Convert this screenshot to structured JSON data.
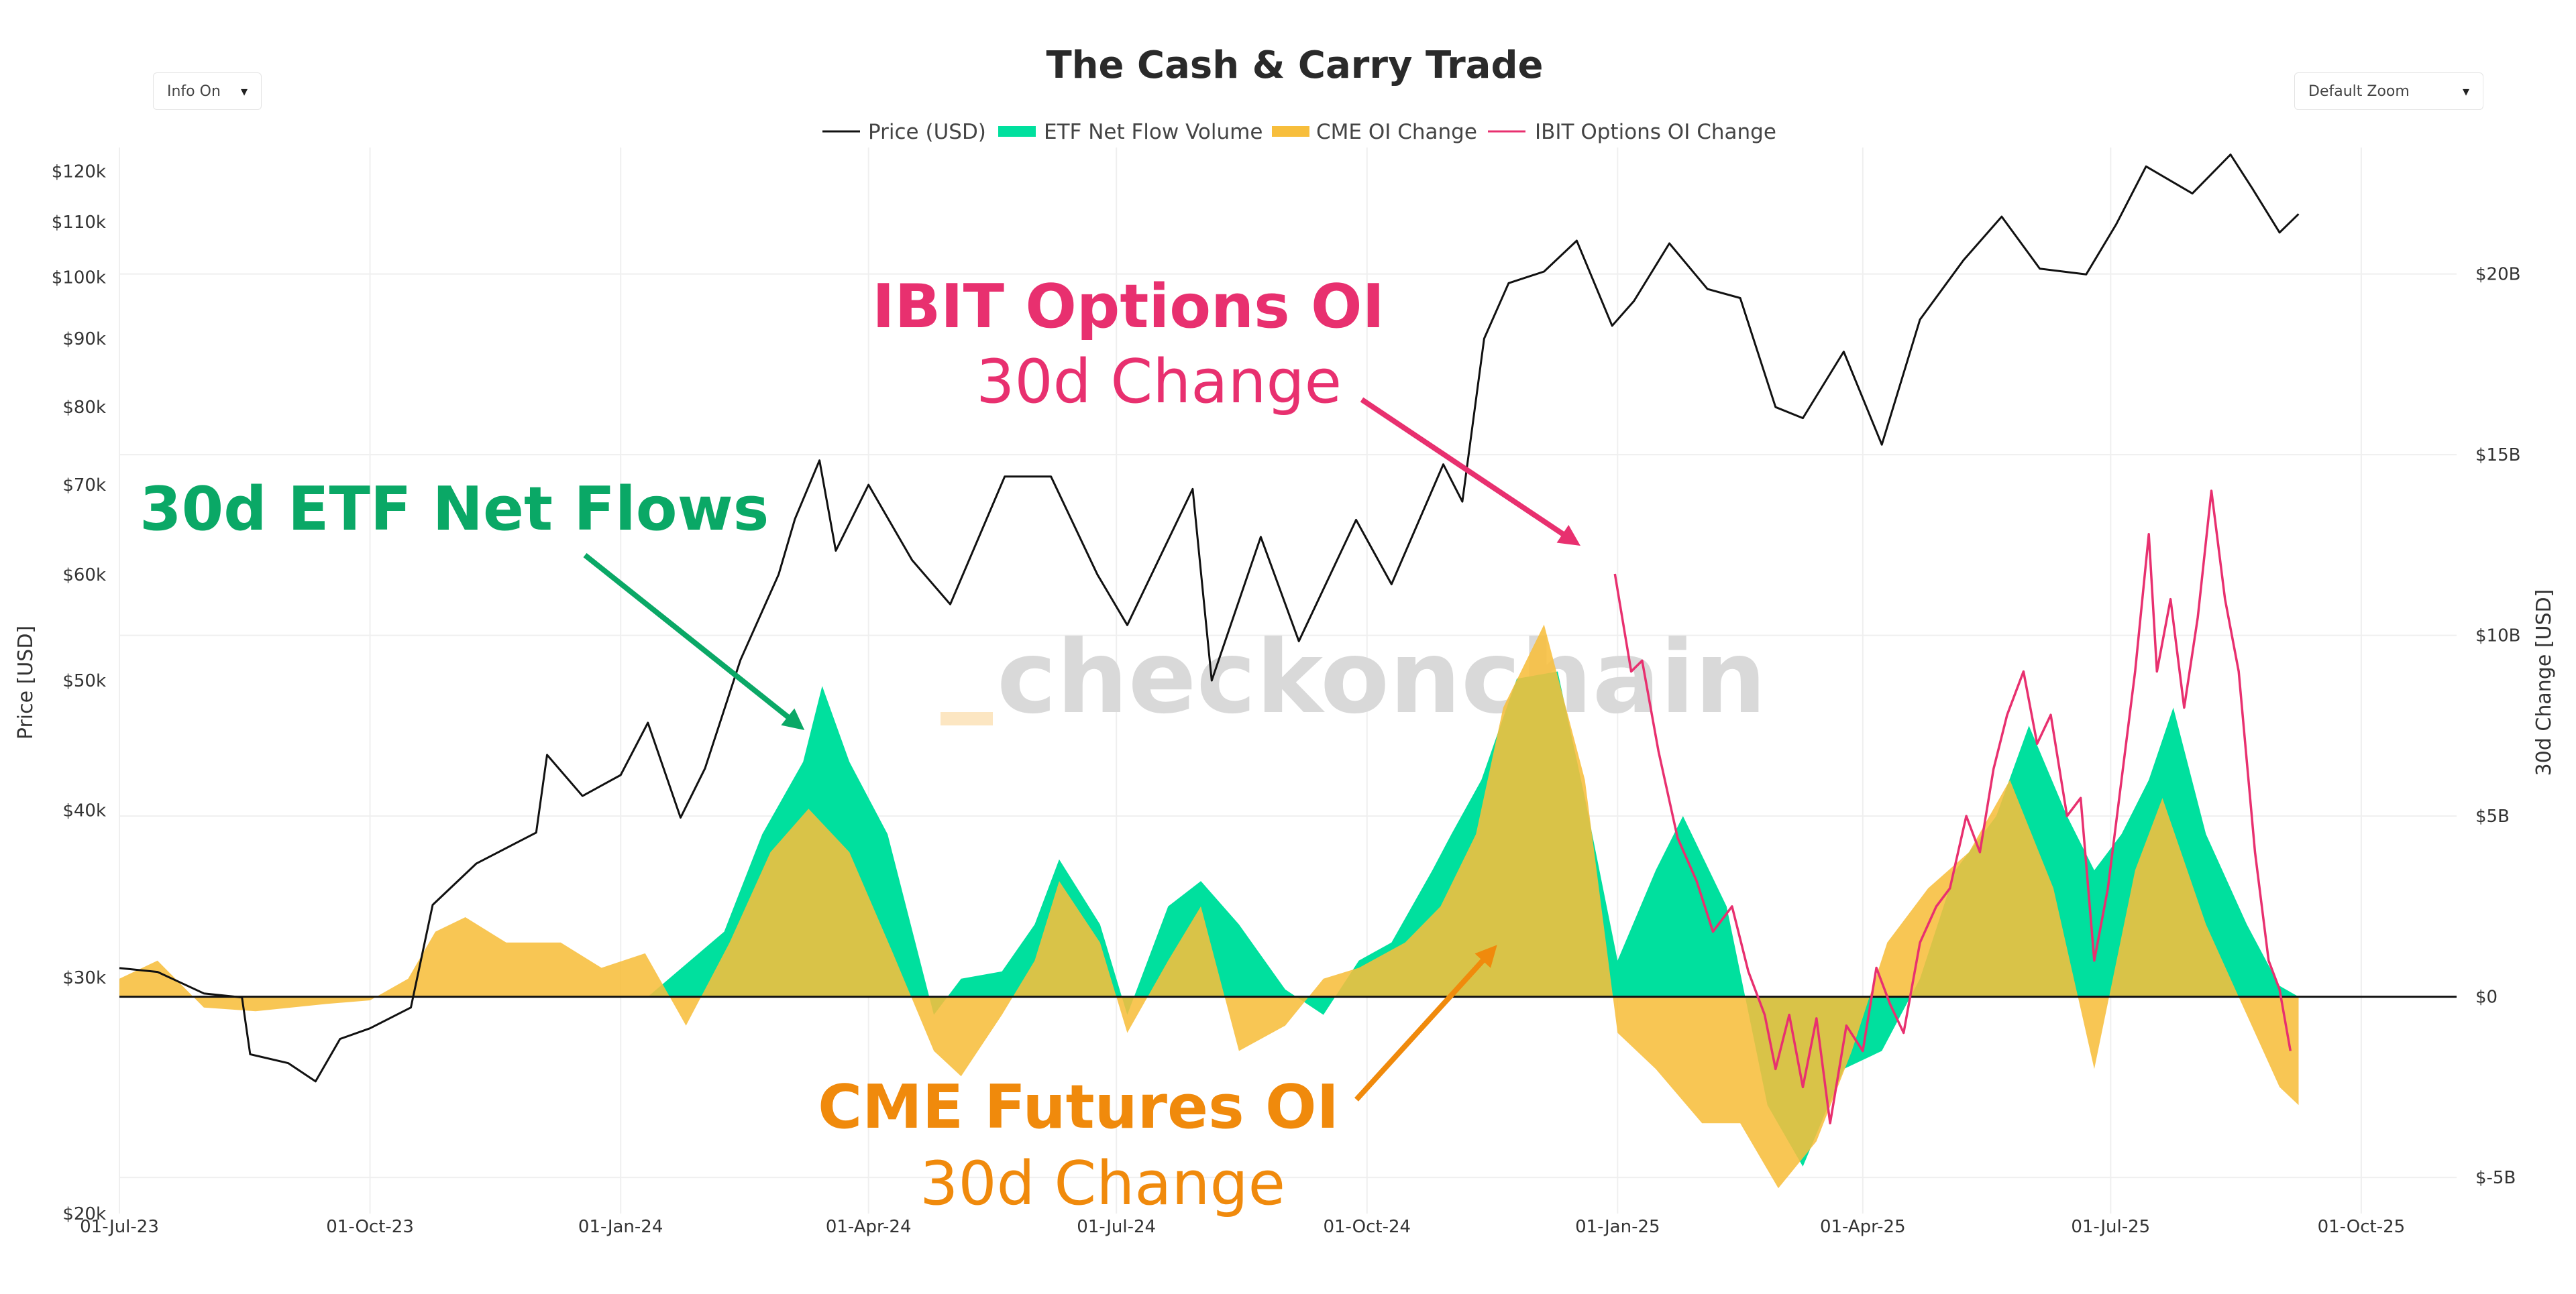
{
  "controls": {
    "info_label": "Info On",
    "zoom_label": "Default Zoom",
    "caret": "▾"
  },
  "colors": {
    "price": "#111111",
    "etf": "#00e09e",
    "cme": "#f7be3c",
    "ibit": "#e8306f",
    "etf_annotation": "#0aa866",
    "cme_annotation": "#f08a0c",
    "ibit_annotation": "#e8306f",
    "grid": "#efefef",
    "watermark": "#d9d9d9",
    "watermark_bar": "#fce6c2"
  },
  "chart_data": {
    "type": "line",
    "title": "The Cash & Carry Trade",
    "xlabel": "",
    "ylabel_left": "Price [USD]",
    "ylabel_right": "30d Change [USD]",
    "y_left_scale": "log",
    "y_left_range": [
      20000,
      125000
    ],
    "y_right_range": [
      -6000000000,
      23500000000
    ],
    "x_range": [
      "2023-07-01",
      "2025-11-05"
    ],
    "x_ticks": [
      {
        "date": "2023-07-01",
        "label": "01-Jul-23"
      },
      {
        "date": "2023-10-01",
        "label": "01-Oct-23"
      },
      {
        "date": "2024-01-01",
        "label": "01-Jan-24"
      },
      {
        "date": "2024-04-01",
        "label": "01-Apr-24"
      },
      {
        "date": "2024-07-01",
        "label": "01-Jul-24"
      },
      {
        "date": "2024-10-01",
        "label": "01-Oct-24"
      },
      {
        "date": "2025-01-01",
        "label": "01-Jan-25"
      },
      {
        "date": "2025-04-01",
        "label": "01-Apr-25"
      },
      {
        "date": "2025-07-01",
        "label": "01-Jul-25"
      },
      {
        "date": "2025-10-01",
        "label": "01-Oct-25"
      }
    ],
    "y_left_ticks": [
      {
        "value": 20000,
        "label": "$20k"
      },
      {
        "value": 30000,
        "label": "$30k"
      },
      {
        "value": 40000,
        "label": "$40k"
      },
      {
        "value": 50000,
        "label": "$50k"
      },
      {
        "value": 60000,
        "label": "$60k"
      },
      {
        "value": 70000,
        "label": "$70k"
      },
      {
        "value": 80000,
        "label": "$80k"
      },
      {
        "value": 90000,
        "label": "$90k"
      },
      {
        "value": 100000,
        "label": "$100k"
      },
      {
        "value": 110000,
        "label": "$110k"
      },
      {
        "value": 120000,
        "label": "$120k"
      }
    ],
    "y_right_ticks": [
      {
        "value": -5000000000,
        "label": "$-5B"
      },
      {
        "value": 0,
        "label": "$0"
      },
      {
        "value": 5000000000,
        "label": "$5B"
      },
      {
        "value": 10000000000,
        "label": "$10B"
      },
      {
        "value": 15000000000,
        "label": "$15B"
      },
      {
        "value": 20000000000,
        "label": "$20B"
      }
    ],
    "legend": [
      {
        "name": "Price (USD)",
        "kind": "line",
        "series": "price"
      },
      {
        "name": "ETF Net Flow Volume",
        "kind": "area",
        "series": "etf"
      },
      {
        "name": "CME OI Change",
        "kind": "area",
        "series": "cme"
      },
      {
        "name": "IBIT Options OI Change",
        "kind": "line",
        "series": "ibit"
      }
    ],
    "series": [
      {
        "name": "Price (USD)",
        "key": "price",
        "axis": "left",
        "points": [
          [
            "2023-07-01",
            30500
          ],
          [
            "2023-07-15",
            30300
          ],
          [
            "2023-08-01",
            29200
          ],
          [
            "2023-08-15",
            29000
          ],
          [
            "2023-08-18",
            26300
          ],
          [
            "2023-09-01",
            25900
          ],
          [
            "2023-09-11",
            25100
          ],
          [
            "2023-09-20",
            27000
          ],
          [
            "2023-10-01",
            27500
          ],
          [
            "2023-10-16",
            28500
          ],
          [
            "2023-10-24",
            34000
          ],
          [
            "2023-11-09",
            36500
          ],
          [
            "2023-12-01",
            38500
          ],
          [
            "2023-12-05",
            44000
          ],
          [
            "2023-12-18",
            41000
          ],
          [
            "2024-01-01",
            42500
          ],
          [
            "2024-01-11",
            46500
          ],
          [
            "2024-01-23",
            39500
          ],
          [
            "2024-02-01",
            43000
          ],
          [
            "2024-02-14",
            51800
          ],
          [
            "2024-02-28",
            60000
          ],
          [
            "2024-03-05",
            66000
          ],
          [
            "2024-03-14",
            73000
          ],
          [
            "2024-03-20",
            62500
          ],
          [
            "2024-04-01",
            70000
          ],
          [
            "2024-04-17",
            61500
          ],
          [
            "2024-05-01",
            57000
          ],
          [
            "2024-05-21",
            71000
          ],
          [
            "2024-06-07",
            71000
          ],
          [
            "2024-06-24",
            60000
          ],
          [
            "2024-07-05",
            55000
          ],
          [
            "2024-07-29",
            69500
          ],
          [
            "2024-08-05",
            50000
          ],
          [
            "2024-08-23",
            64000
          ],
          [
            "2024-09-06",
            53500
          ],
          [
            "2024-09-27",
            65900
          ],
          [
            "2024-10-10",
            59000
          ],
          [
            "2024-10-29",
            72500
          ],
          [
            "2024-11-05",
            68000
          ],
          [
            "2024-11-13",
            90000
          ],
          [
            "2024-11-22",
            99000
          ],
          [
            "2024-12-05",
            101000
          ],
          [
            "2024-12-17",
            106500
          ],
          [
            "2024-12-30",
            92000
          ],
          [
            "2025-01-07",
            96000
          ],
          [
            "2025-01-20",
            106000
          ],
          [
            "2025-02-03",
            98000
          ],
          [
            "2025-02-15",
            96500
          ],
          [
            "2025-02-28",
            80000
          ],
          [
            "2025-03-10",
            78500
          ],
          [
            "2025-03-25",
            88000
          ],
          [
            "2025-04-08",
            75000
          ],
          [
            "2025-04-22",
            93000
          ],
          [
            "2025-05-08",
            103000
          ],
          [
            "2025-05-22",
            111000
          ],
          [
            "2025-06-05",
            101500
          ],
          [
            "2025-06-22",
            100500
          ],
          [
            "2025-07-03",
            109500
          ],
          [
            "2025-07-14",
            121000
          ],
          [
            "2025-07-31",
            115500
          ],
          [
            "2025-08-14",
            123500
          ],
          [
            "2025-08-22",
            116500
          ],
          [
            "2025-09-01",
            108000
          ],
          [
            "2025-09-08",
            111500
          ]
        ]
      },
      {
        "name": "ETF Net Flow Volume",
        "key": "etf",
        "axis": "right",
        "points": [
          [
            "2024-01-11",
            0
          ],
          [
            "2024-01-25",
            900000000
          ],
          [
            "2024-02-08",
            1800000000
          ],
          [
            "2024-02-22",
            4500000000
          ],
          [
            "2024-03-08",
            6500000000
          ],
          [
            "2024-03-15",
            8600000000
          ],
          [
            "2024-03-25",
            6500000000
          ],
          [
            "2024-04-08",
            4500000000
          ],
          [
            "2024-04-25",
            -500000000
          ],
          [
            "2024-05-05",
            500000000
          ],
          [
            "2024-05-20",
            700000000
          ],
          [
            "2024-06-01",
            2000000000
          ],
          [
            "2024-06-10",
            3800000000
          ],
          [
            "2024-06-25",
            2000000000
          ],
          [
            "2024-07-05",
            -500000000
          ],
          [
            "2024-07-20",
            2500000000
          ],
          [
            "2024-08-01",
            3200000000
          ],
          [
            "2024-08-15",
            2000000000
          ],
          [
            "2024-09-01",
            200000000
          ],
          [
            "2024-09-15",
            -500000000
          ],
          [
            "2024-09-28",
            1000000000
          ],
          [
            "2024-10-10",
            1500000000
          ],
          [
            "2024-10-25",
            3500000000
          ],
          [
            "2024-11-01",
            4500000000
          ],
          [
            "2024-11-12",
            6000000000
          ],
          [
            "2024-11-25",
            8800000000
          ],
          [
            "2024-12-10",
            9000000000
          ],
          [
            "2024-12-20",
            5500000000
          ],
          [
            "2025-01-01",
            1000000000
          ],
          [
            "2025-01-15",
            3500000000
          ],
          [
            "2025-01-25",
            5000000000
          ],
          [
            "2025-02-10",
            2500000000
          ],
          [
            "2025-02-25",
            -3000000000
          ],
          [
            "2025-03-10",
            -4700000000
          ],
          [
            "2025-03-25",
            -2000000000
          ],
          [
            "2025-04-08",
            -1500000000
          ],
          [
            "2025-04-22",
            500000000
          ],
          [
            "2025-05-05",
            3500000000
          ],
          [
            "2025-05-20",
            5000000000
          ],
          [
            "2025-06-01",
            7500000000
          ],
          [
            "2025-06-15",
            5000000000
          ],
          [
            "2025-06-25",
            3500000000
          ],
          [
            "2025-07-05",
            4500000000
          ],
          [
            "2025-07-15",
            6000000000
          ],
          [
            "2025-07-24",
            8000000000
          ],
          [
            "2025-08-05",
            4500000000
          ],
          [
            "2025-08-20",
            2000000000
          ],
          [
            "2025-09-01",
            300000000
          ],
          [
            "2025-09-08",
            0
          ]
        ]
      },
      {
        "name": "CME OI Change",
        "key": "cme",
        "axis": "right",
        "points": [
          [
            "2023-07-01",
            500000000
          ],
          [
            "2023-07-15",
            1000000000
          ],
          [
            "2023-08-01",
            -300000000
          ],
          [
            "2023-08-20",
            -400000000
          ],
          [
            "2023-09-15",
            -200000000
          ],
          [
            "2023-10-01",
            -100000000
          ],
          [
            "2023-10-15",
            500000000
          ],
          [
            "2023-10-25",
            1800000000
          ],
          [
            "2023-11-05",
            2200000000
          ],
          [
            "2023-11-20",
            1500000000
          ],
          [
            "2023-12-10",
            1500000000
          ],
          [
            "2023-12-25",
            800000000
          ],
          [
            "2024-01-10",
            1200000000
          ],
          [
            "2024-01-25",
            -800000000
          ],
          [
            "2024-02-10",
            1500000000
          ],
          [
            "2024-02-25",
            4000000000
          ],
          [
            "2024-03-10",
            5200000000
          ],
          [
            "2024-03-25",
            4000000000
          ],
          [
            "2024-04-10",
            1200000000
          ],
          [
            "2024-04-25",
            -1500000000
          ],
          [
            "2024-05-05",
            -2200000000
          ],
          [
            "2024-05-20",
            -500000000
          ],
          [
            "2024-06-01",
            1000000000
          ],
          [
            "2024-06-10",
            3200000000
          ],
          [
            "2024-06-25",
            1500000000
          ],
          [
            "2024-07-05",
            -1000000000
          ],
          [
            "2024-07-20",
            1000000000
          ],
          [
            "2024-08-01",
            2500000000
          ],
          [
            "2024-08-15",
            -1500000000
          ],
          [
            "2024-09-01",
            -800000000
          ],
          [
            "2024-09-15",
            500000000
          ],
          [
            "2024-09-28",
            800000000
          ],
          [
            "2024-10-15",
            1500000000
          ],
          [
            "2024-10-28",
            2500000000
          ],
          [
            "2024-11-10",
            4500000000
          ],
          [
            "2024-11-20",
            8000000000
          ],
          [
            "2024-12-05",
            10300000000
          ],
          [
            "2024-12-20",
            6000000000
          ],
          [
            "2025-01-01",
            -1000000000
          ],
          [
            "2025-01-15",
            -2000000000
          ],
          [
            "2025-02-01",
            -3500000000
          ],
          [
            "2025-02-15",
            -3500000000
          ],
          [
            "2025-03-01",
            -5300000000
          ],
          [
            "2025-03-15",
            -4000000000
          ],
          [
            "2025-03-28",
            -1500000000
          ],
          [
            "2025-04-10",
            1500000000
          ],
          [
            "2025-04-25",
            3000000000
          ],
          [
            "2025-05-10",
            4000000000
          ],
          [
            "2025-05-25",
            6000000000
          ],
          [
            "2025-06-10",
            3000000000
          ],
          [
            "2025-06-25",
            -2000000000
          ],
          [
            "2025-07-10",
            3500000000
          ],
          [
            "2025-07-20",
            5500000000
          ],
          [
            "2025-08-05",
            2000000000
          ],
          [
            "2025-08-20",
            -500000000
          ],
          [
            "2025-09-01",
            -2500000000
          ],
          [
            "2025-09-08",
            -3000000000
          ]
        ]
      },
      {
        "name": "IBIT Options OI Change",
        "key": "ibit",
        "axis": "right",
        "points": [
          [
            "2024-12-31",
            11700000000
          ],
          [
            "2025-01-06",
            9000000000
          ],
          [
            "2025-01-10",
            9300000000
          ],
          [
            "2025-01-16",
            6800000000
          ],
          [
            "2025-01-23",
            4400000000
          ],
          [
            "2025-01-30",
            3200000000
          ],
          [
            "2025-02-05",
            1800000000
          ],
          [
            "2025-02-12",
            2500000000
          ],
          [
            "2025-02-18",
            700000000
          ],
          [
            "2025-02-24",
            -500000000
          ],
          [
            "2025-02-28",
            -2000000000
          ],
          [
            "2025-03-05",
            -500000000
          ],
          [
            "2025-03-10",
            -2500000000
          ],
          [
            "2025-03-15",
            -600000000
          ],
          [
            "2025-03-20",
            -3500000000
          ],
          [
            "2025-03-26",
            -800000000
          ],
          [
            "2025-04-01",
            -1500000000
          ],
          [
            "2025-04-06",
            800000000
          ],
          [
            "2025-04-11",
            -200000000
          ],
          [
            "2025-04-16",
            -1000000000
          ],
          [
            "2025-04-22",
            1500000000
          ],
          [
            "2025-04-28",
            2500000000
          ],
          [
            "2025-05-03",
            3000000000
          ],
          [
            "2025-05-09",
            5000000000
          ],
          [
            "2025-05-14",
            4000000000
          ],
          [
            "2025-05-19",
            6300000000
          ],
          [
            "2025-05-24",
            7800000000
          ],
          [
            "2025-05-30",
            9000000000
          ],
          [
            "2025-06-04",
            7000000000
          ],
          [
            "2025-06-09",
            7800000000
          ],
          [
            "2025-06-15",
            5000000000
          ],
          [
            "2025-06-20",
            5500000000
          ],
          [
            "2025-06-25",
            1000000000
          ],
          [
            "2025-06-30",
            3000000000
          ],
          [
            "2025-07-05",
            6000000000
          ],
          [
            "2025-07-10",
            9000000000
          ],
          [
            "2025-07-15",
            12800000000
          ],
          [
            "2025-07-18",
            9000000000
          ],
          [
            "2025-07-23",
            11000000000
          ],
          [
            "2025-07-28",
            8000000000
          ],
          [
            "2025-08-02",
            10500000000
          ],
          [
            "2025-08-07",
            14000000000
          ],
          [
            "2025-08-12",
            11000000000
          ],
          [
            "2025-08-17",
            9000000000
          ],
          [
            "2025-08-23",
            4000000000
          ],
          [
            "2025-08-28",
            1000000000
          ],
          [
            "2025-09-01",
            200000000
          ],
          [
            "2025-09-05",
            -1500000000
          ]
        ]
      }
    ],
    "annotations": [
      {
        "key": "etf",
        "lines": [
          "30d ETF Net Flows"
        ]
      },
      {
        "key": "ibit",
        "lines": [
          "IBIT Options OI",
          "30d Change"
        ]
      },
      {
        "key": "cme",
        "lines": [
          "CME Futures OI",
          "30d Change"
        ]
      }
    ],
    "watermark": "checkonchain"
  }
}
